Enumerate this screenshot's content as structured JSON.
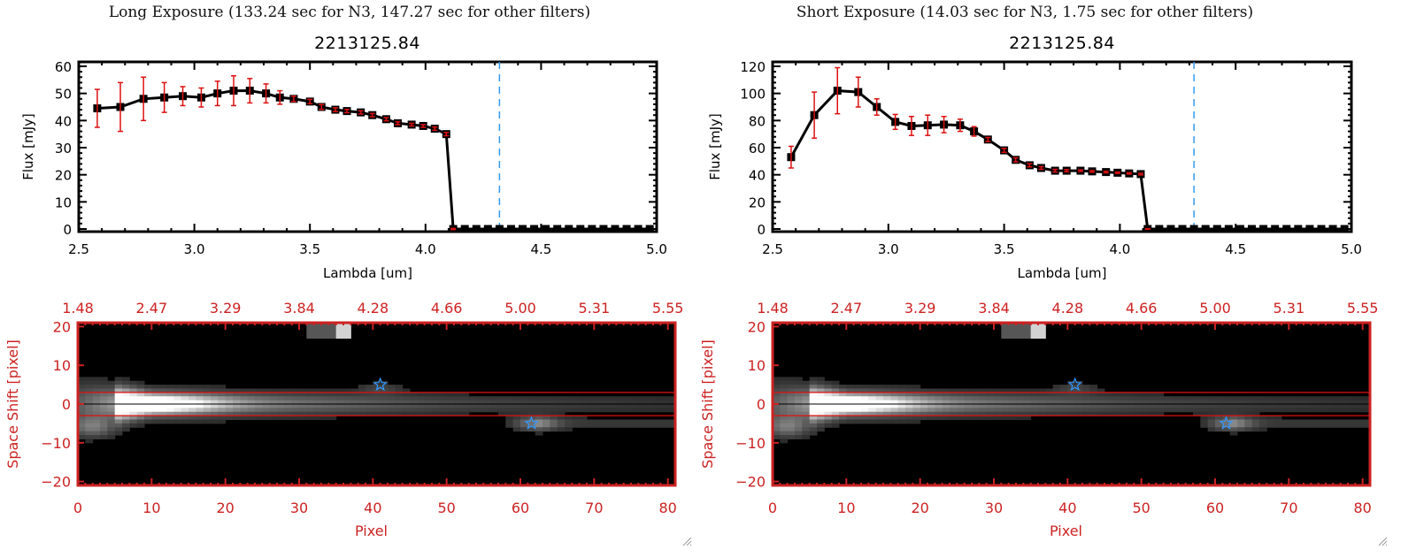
{
  "panels": [
    {
      "title": "Long Exposure (133.24 sec for N3, 147.27 sec for other filters)",
      "object_id": "2213125.84"
    },
    {
      "title": "Short Exposure (14.03 sec for N3, 1.75 sec for other filters)",
      "object_id": "2213125.84"
    }
  ],
  "colors": {
    "line": "#000000",
    "errorbar": "#dd1111",
    "marker_line": "#3399ee",
    "zero_line": "#dd1111",
    "image_axis": "#cc2222",
    "star": "#3399ff"
  },
  "chart_data": [
    {
      "type": "line",
      "name": "long-exposure-spectrum",
      "title": "2213125.84",
      "xlabel": "Lambda [um]",
      "ylabel": "Flux [mJy]",
      "xlim": [
        2.5,
        5.0
      ],
      "ylim": [
        -2,
        62
      ],
      "xticks": [
        "2.5",
        "3.0",
        "3.5",
        "4.0",
        "4.5",
        "5.0"
      ],
      "xtick_values": [
        2.5,
        3.0,
        3.5,
        4.0,
        4.5,
        5.0
      ],
      "yticks": [
        "0",
        "10",
        "20",
        "30",
        "40",
        "50",
        "60"
      ],
      "ytick_values": [
        0,
        10,
        20,
        30,
        40,
        50,
        60
      ],
      "vline_x": 4.32,
      "x": [
        2.58,
        2.68,
        2.78,
        2.87,
        2.95,
        3.03,
        3.1,
        3.17,
        3.24,
        3.31,
        3.37,
        3.43,
        3.5,
        3.55,
        3.61,
        3.66,
        3.72,
        3.77,
        3.83,
        3.88,
        3.94,
        3.99,
        4.04,
        4.09,
        4.12,
        4.17,
        4.22,
        4.27,
        4.32,
        4.37,
        4.42,
        4.47,
        4.52,
        4.57,
        4.62,
        4.67,
        4.72,
        4.77,
        4.82,
        4.87,
        4.92,
        4.97
      ],
      "y": [
        44.5,
        45,
        48,
        48.5,
        49,
        48.5,
        50,
        51,
        51,
        50,
        48.5,
        48,
        47,
        45,
        44,
        43.5,
        43,
        42,
        40.5,
        39,
        38.5,
        38,
        37,
        35,
        0,
        0,
        0,
        0,
        0,
        0,
        0,
        0,
        0,
        0,
        0,
        0,
        0,
        0,
        0,
        0,
        0,
        0
      ],
      "yerr": [
        7,
        9,
        8,
        5.5,
        3.5,
        3.5,
        4.5,
        5.5,
        4.5,
        3.5,
        2.5,
        1,
        0.8,
        0.9,
        0.7,
        0.6,
        0.6,
        0.6,
        0.6,
        0.5,
        0.5,
        0.5,
        0.6,
        0.6,
        0.2,
        0,
        0,
        0,
        0,
        0,
        0,
        0,
        0,
        0,
        0,
        0,
        0,
        0,
        0,
        0,
        0,
        0
      ]
    },
    {
      "type": "line",
      "name": "short-exposure-spectrum",
      "title": "2213125.84",
      "xlabel": "Lambda [um]",
      "ylabel": "Flux [mJy]",
      "xlim": [
        2.5,
        5.0
      ],
      "ylim": [
        -4,
        124
      ],
      "xticks": [
        "2.5",
        "3.0",
        "3.5",
        "4.0",
        "4.5",
        "5.0"
      ],
      "xtick_values": [
        2.5,
        3.0,
        3.5,
        4.0,
        4.5,
        5.0
      ],
      "yticks": [
        "0",
        "20",
        "40",
        "60",
        "80",
        "100",
        "120"
      ],
      "ytick_values": [
        0,
        20,
        40,
        60,
        80,
        100,
        120
      ],
      "vline_x": 4.32,
      "x": [
        2.58,
        2.68,
        2.78,
        2.87,
        2.95,
        3.03,
        3.1,
        3.17,
        3.24,
        3.31,
        3.37,
        3.43,
        3.5,
        3.55,
        3.61,
        3.66,
        3.72,
        3.77,
        3.83,
        3.88,
        3.94,
        3.99,
        4.04,
        4.09,
        4.12,
        4.17,
        4.22,
        4.27,
        4.32,
        4.37,
        4.42,
        4.47,
        4.52,
        4.57,
        4.62,
        4.67,
        4.72,
        4.77,
        4.82,
        4.87,
        4.92,
        4.97
      ],
      "y": [
        53,
        84,
        102,
        101,
        90,
        79,
        76,
        76.5,
        77,
        76.5,
        72,
        66,
        58,
        51,
        47,
        45,
        43,
        43,
        43,
        42.5,
        42,
        41.5,
        41,
        40.5,
        0,
        0,
        0,
        0,
        0,
        0,
        0,
        0,
        0,
        0,
        0,
        0,
        0,
        0,
        0,
        0,
        0,
        0
      ],
      "yerr": [
        8,
        17,
        17,
        11,
        6,
        5.5,
        7,
        7.5,
        6,
        4.5,
        3.5,
        1.5,
        1.5,
        1.5,
        1.2,
        1,
        1,
        0.8,
        0.6,
        0.6,
        0.6,
        0.5,
        0.5,
        0.6,
        0.2,
        0,
        0,
        0,
        0,
        0,
        0,
        0,
        0,
        0,
        0,
        0,
        0,
        0,
        0,
        0,
        0,
        0
      ]
    },
    {
      "type": "heatmap",
      "name": "long-exposure-2d-spectrum",
      "xlabel": "Pixel",
      "ylabel": "Space Shift [pixel]",
      "xlim": [
        0,
        81
      ],
      "ylim": [
        -21,
        21
      ],
      "xticks": [
        "0",
        "10",
        "20",
        "30",
        "40",
        "50",
        "60",
        "70",
        "80"
      ],
      "xtick_values": [
        0,
        10,
        20,
        30,
        40,
        50,
        60,
        70,
        80
      ],
      "yticks": [
        "-20",
        "-10",
        "0",
        "10",
        "20"
      ],
      "ytick_values": [
        -20,
        -10,
        0,
        10,
        20
      ],
      "top_ticks": [
        "1.48",
        "2.47",
        "3.29",
        "3.84",
        "4.28",
        "4.66",
        "5.00",
        "5.31",
        "5.55"
      ],
      "aperture_lines_y": [
        3,
        -3
      ],
      "center_line_y": 0,
      "stars": [
        {
          "x": 41,
          "y": 5
        },
        {
          "x": 61.5,
          "y": -5
        }
      ]
    },
    {
      "type": "heatmap",
      "name": "short-exposure-2d-spectrum",
      "xlabel": "Pixel",
      "ylabel": "Space Shift [pixel]",
      "xlim": [
        0,
        81
      ],
      "ylim": [
        -21,
        21
      ],
      "xticks": [
        "0",
        "10",
        "20",
        "30",
        "40",
        "50",
        "60",
        "70",
        "80"
      ],
      "xtick_values": [
        0,
        10,
        20,
        30,
        40,
        50,
        60,
        70,
        80
      ],
      "yticks": [
        "-20",
        "-10",
        "0",
        "10",
        "20"
      ],
      "ytick_values": [
        -20,
        -10,
        0,
        10,
        20
      ],
      "top_ticks": [
        "1.48",
        "2.47",
        "3.29",
        "3.84",
        "4.28",
        "4.66",
        "5.00",
        "5.31",
        "5.55"
      ],
      "aperture_lines_y": [
        3,
        -3
      ],
      "center_line_y": 0,
      "stars": [
        {
          "x": 41,
          "y": 5
        },
        {
          "x": 61.5,
          "y": -5
        }
      ]
    }
  ]
}
